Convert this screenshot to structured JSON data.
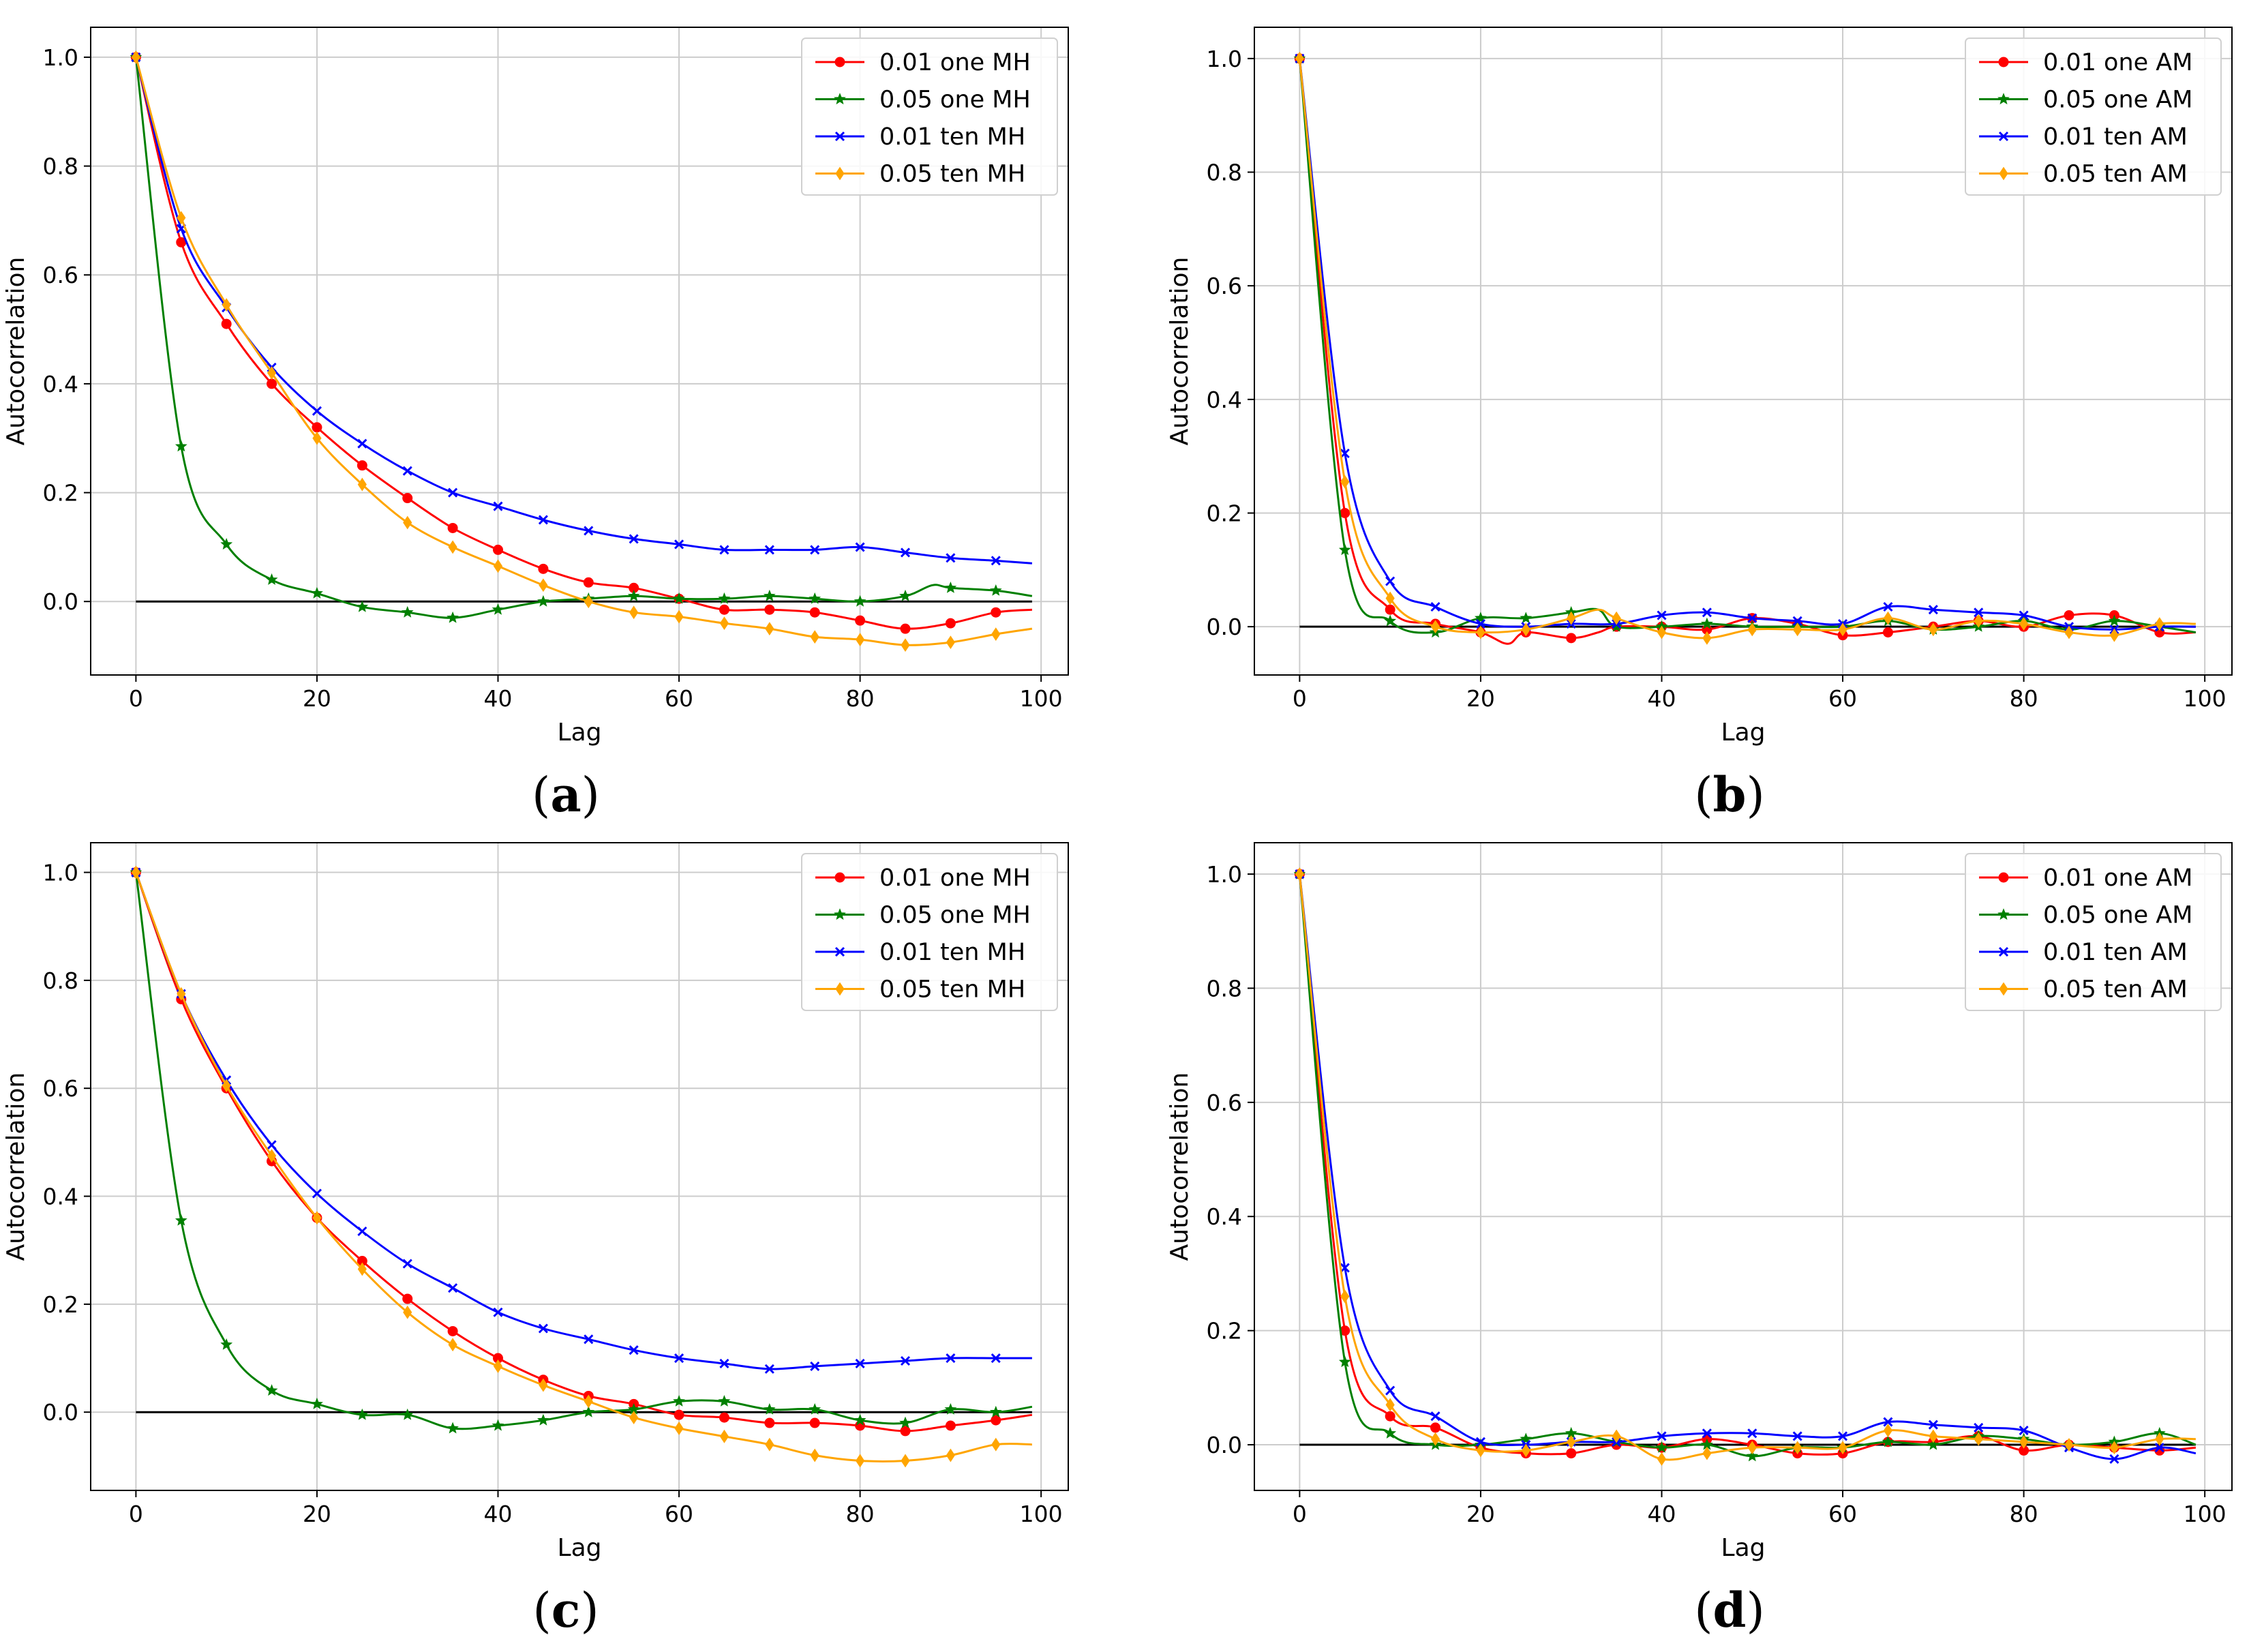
{
  "colors": {
    "red": "#ff0000",
    "green": "#008000",
    "blue": "#0000ff",
    "orange": "#ffa500",
    "zero_line": "#000000",
    "grid": "#cccccc"
  },
  "chart_data": [
    {
      "type": "line",
      "panel": "(a)",
      "xlabel": "Lag",
      "ylabel": "Autocorrelation",
      "xlim": [
        -5,
        103
      ],
      "ylim": [
        -0.135,
        1.055
      ],
      "xticks": [
        0,
        20,
        40,
        60,
        80,
        100
      ],
      "xtick_labels": [
        "0",
        "20",
        "40",
        "60",
        "80",
        "100"
      ],
      "yticks": [
        0.0,
        0.2,
        0.4,
        0.6,
        0.8,
        1.0
      ],
      "ytick_labels": [
        "0.0",
        "0.2",
        "0.4",
        "0.6",
        "0.8",
        "1.0"
      ],
      "grid": true,
      "legend_position": "top-right",
      "zero_line": true,
      "series": [
        {
          "name": "0.01 one MH",
          "color": "red",
          "marker": "circle",
          "x": [
            0,
            5,
            10,
            15,
            20,
            25,
            30,
            35,
            40,
            45,
            50,
            55,
            60,
            65,
            70,
            75,
            80,
            85,
            90,
            95,
            99
          ],
          "y": [
            1.0,
            0.66,
            0.51,
            0.4,
            0.32,
            0.25,
            0.19,
            0.135,
            0.095,
            0.06,
            0.035,
            0.025,
            0.005,
            -0.015,
            -0.015,
            -0.02,
            -0.035,
            -0.05,
            -0.04,
            -0.02,
            -0.015
          ]
        },
        {
          "name": "0.05 one MH",
          "color": "green",
          "marker": "star",
          "x": [
            0,
            5,
            10,
            15,
            20,
            25,
            30,
            35,
            40,
            45,
            50,
            55,
            60,
            65,
            70,
            75,
            80,
            85,
            88,
            90,
            95,
            99
          ],
          "y": [
            1.0,
            0.285,
            0.105,
            0.04,
            0.015,
            -0.01,
            -0.02,
            -0.03,
            -0.015,
            0.0,
            0.005,
            0.01,
            0.005,
            0.005,
            0.01,
            0.005,
            0.0,
            0.01,
            0.03,
            0.025,
            0.02,
            0.01
          ]
        },
        {
          "name": "0.01 ten MH",
          "color": "blue",
          "marker": "x",
          "x": [
            0,
            5,
            10,
            15,
            20,
            25,
            30,
            35,
            40,
            45,
            50,
            55,
            60,
            65,
            70,
            75,
            80,
            85,
            90,
            95,
            99
          ],
          "y": [
            1.0,
            0.685,
            0.54,
            0.43,
            0.35,
            0.29,
            0.24,
            0.2,
            0.175,
            0.15,
            0.13,
            0.115,
            0.105,
            0.095,
            0.095,
            0.095,
            0.1,
            0.09,
            0.08,
            0.075,
            0.07
          ]
        },
        {
          "name": "0.05 ten MH",
          "color": "orange",
          "marker": "diamond",
          "x": [
            0,
            5,
            10,
            15,
            20,
            25,
            30,
            35,
            40,
            45,
            50,
            55,
            60,
            65,
            70,
            75,
            80,
            85,
            90,
            95,
            99
          ],
          "y": [
            1.0,
            0.705,
            0.545,
            0.42,
            0.3,
            0.215,
            0.145,
            0.1,
            0.065,
            0.03,
            0.0,
            -0.02,
            -0.028,
            -0.04,
            -0.05,
            -0.065,
            -0.07,
            -0.08,
            -0.075,
            -0.06,
            -0.05
          ]
        }
      ]
    },
    {
      "type": "line",
      "panel": "(b)",
      "xlabel": "Lag",
      "ylabel": "Autocorrelation",
      "xlim": [
        -5,
        103
      ],
      "ylim": [
        -0.085,
        1.055
      ],
      "xticks": [
        0,
        20,
        40,
        60,
        80,
        100
      ],
      "xtick_labels": [
        "0",
        "20",
        "40",
        "60",
        "80",
        "100"
      ],
      "yticks": [
        0.0,
        0.2,
        0.4,
        0.6,
        0.8,
        1.0
      ],
      "ytick_labels": [
        "0.0",
        "0.2",
        "0.4",
        "0.6",
        "0.8",
        "1.0"
      ],
      "grid": true,
      "legend_position": "top-right",
      "zero_line": true,
      "series": [
        {
          "name": "0.01 one AM",
          "color": "red",
          "marker": "circle",
          "x": [
            0,
            5,
            10,
            15,
            20,
            23,
            25,
            30,
            33,
            35,
            40,
            45,
            50,
            55,
            60,
            65,
            70,
            75,
            80,
            85,
            90,
            95,
            99
          ],
          "y": [
            1.0,
            0.2,
            0.03,
            0.005,
            -0.01,
            -0.03,
            -0.01,
            -0.02,
            -0.01,
            0.0,
            0.0,
            -0.005,
            0.015,
            0.005,
            -0.015,
            -0.01,
            0.0,
            0.01,
            0.0,
            0.02,
            0.02,
            -0.01,
            -0.01
          ]
        },
        {
          "name": "0.05 one AM",
          "color": "green",
          "marker": "star",
          "x": [
            0,
            5,
            10,
            15,
            20,
            25,
            30,
            33,
            35,
            40,
            45,
            50,
            55,
            60,
            65,
            70,
            75,
            80,
            85,
            90,
            95,
            99
          ],
          "y": [
            1.0,
            0.135,
            0.01,
            -0.01,
            0.015,
            0.015,
            0.025,
            0.03,
            0.0,
            0.0,
            0.005,
            0.0,
            0.0,
            0.0,
            0.01,
            -0.005,
            0.0,
            0.01,
            -0.005,
            0.01,
            0.0,
            -0.01
          ]
        },
        {
          "name": "0.01 ten AM",
          "color": "blue",
          "marker": "x",
          "x": [
            0,
            5,
            10,
            15,
            20,
            25,
            30,
            35,
            40,
            45,
            50,
            55,
            60,
            65,
            70,
            75,
            80,
            85,
            90,
            95,
            99
          ],
          "y": [
            1.0,
            0.305,
            0.08,
            0.035,
            0.005,
            0.0,
            0.005,
            0.005,
            0.02,
            0.025,
            0.015,
            0.01,
            0.005,
            0.035,
            0.03,
            0.025,
            0.02,
            0.0,
            -0.005,
            0.0,
            0.0
          ]
        },
        {
          "name": "0.05 ten AM",
          "color": "orange",
          "marker": "diamond",
          "x": [
            0,
            5,
            10,
            15,
            20,
            25,
            30,
            33,
            35,
            40,
            45,
            50,
            55,
            60,
            65,
            70,
            75,
            80,
            85,
            90,
            95,
            99
          ],
          "y": [
            1.0,
            0.255,
            0.05,
            0.0,
            -0.01,
            -0.005,
            0.015,
            0.03,
            0.015,
            -0.01,
            -0.02,
            -0.005,
            -0.005,
            -0.005,
            0.015,
            -0.005,
            0.01,
            0.005,
            -0.01,
            -0.015,
            0.005,
            0.005
          ]
        }
      ]
    },
    {
      "type": "line",
      "panel": "(c)",
      "xlabel": "Lag",
      "ylabel": "Autocorrelation",
      "xlim": [
        -5,
        103
      ],
      "ylim": [
        -0.145,
        1.055
      ],
      "xticks": [
        0,
        20,
        40,
        60,
        80,
        100
      ],
      "xtick_labels": [
        "0",
        "20",
        "40",
        "60",
        "80",
        "100"
      ],
      "yticks": [
        0.0,
        0.2,
        0.4,
        0.6,
        0.8,
        1.0
      ],
      "ytick_labels": [
        "0.0",
        "0.2",
        "0.4",
        "0.6",
        "0.8",
        "1.0"
      ],
      "grid": true,
      "legend_position": "top-right",
      "zero_line": true,
      "series": [
        {
          "name": "0.01 one MH",
          "color": "red",
          "marker": "circle",
          "x": [
            0,
            5,
            10,
            15,
            20,
            25,
            30,
            35,
            40,
            45,
            50,
            55,
            60,
            65,
            70,
            75,
            80,
            85,
            90,
            95,
            99
          ],
          "y": [
            1.0,
            0.765,
            0.6,
            0.465,
            0.36,
            0.28,
            0.21,
            0.15,
            0.1,
            0.06,
            0.03,
            0.015,
            -0.005,
            -0.01,
            -0.02,
            -0.02,
            -0.025,
            -0.035,
            -0.025,
            -0.015,
            -0.005
          ]
        },
        {
          "name": "0.05 one MH",
          "color": "green",
          "marker": "star",
          "x": [
            0,
            5,
            10,
            15,
            20,
            25,
            30,
            35,
            40,
            45,
            50,
            55,
            60,
            65,
            70,
            75,
            80,
            85,
            90,
            95,
            99
          ],
          "y": [
            1.0,
            0.355,
            0.125,
            0.04,
            0.015,
            -0.005,
            -0.005,
            -0.03,
            -0.025,
            -0.015,
            0.0,
            0.005,
            0.02,
            0.02,
            0.005,
            0.005,
            -0.015,
            -0.02,
            0.005,
            0.0,
            0.01
          ]
        },
        {
          "name": "0.01 ten MH",
          "color": "blue",
          "marker": "x",
          "x": [
            0,
            5,
            10,
            15,
            20,
            25,
            30,
            35,
            40,
            45,
            50,
            55,
            60,
            65,
            70,
            75,
            80,
            85,
            90,
            95,
            99
          ],
          "y": [
            1.0,
            0.775,
            0.615,
            0.495,
            0.405,
            0.335,
            0.275,
            0.23,
            0.185,
            0.155,
            0.135,
            0.115,
            0.1,
            0.09,
            0.08,
            0.085,
            0.09,
            0.095,
            0.1,
            0.1,
            0.1
          ]
        },
        {
          "name": "0.05 ten MH",
          "color": "orange",
          "marker": "diamond",
          "x": [
            0,
            5,
            10,
            15,
            20,
            25,
            30,
            35,
            40,
            45,
            50,
            55,
            60,
            65,
            70,
            75,
            80,
            85,
            90,
            95,
            99
          ],
          "y": [
            1.0,
            0.775,
            0.605,
            0.475,
            0.36,
            0.265,
            0.185,
            0.125,
            0.085,
            0.05,
            0.02,
            -0.01,
            -0.03,
            -0.045,
            -0.06,
            -0.08,
            -0.09,
            -0.09,
            -0.08,
            -0.06,
            -0.06
          ]
        }
      ]
    },
    {
      "type": "line",
      "panel": "(d)",
      "xlabel": "Lag",
      "ylabel": "Autocorrelation",
      "xlim": [
        -5,
        103
      ],
      "ylim": [
        -0.08,
        1.055
      ],
      "xticks": [
        0,
        20,
        40,
        60,
        80,
        100
      ],
      "xtick_labels": [
        "0",
        "20",
        "40",
        "60",
        "80",
        "100"
      ],
      "yticks": [
        0.0,
        0.2,
        0.4,
        0.6,
        0.8,
        1.0
      ],
      "ytick_labels": [
        "0.0",
        "0.2",
        "0.4",
        "0.6",
        "0.8",
        "1.0"
      ],
      "grid": true,
      "legend_position": "top-right",
      "zero_line": true,
      "series": [
        {
          "name": "0.01 one AM",
          "color": "red",
          "marker": "circle",
          "x": [
            0,
            5,
            10,
            15,
            20,
            25,
            30,
            35,
            40,
            45,
            50,
            55,
            60,
            65,
            70,
            75,
            80,
            85,
            90,
            95,
            99
          ],
          "y": [
            1.0,
            0.2,
            0.05,
            0.03,
            -0.005,
            -0.015,
            -0.015,
            0.0,
            -0.005,
            0.01,
            0.0,
            -0.015,
            -0.015,
            0.005,
            0.005,
            0.015,
            -0.01,
            0.0,
            -0.005,
            -0.01,
            -0.005
          ]
        },
        {
          "name": "0.05 one AM",
          "color": "green",
          "marker": "star",
          "x": [
            0,
            5,
            10,
            15,
            20,
            25,
            30,
            35,
            40,
            45,
            50,
            55,
            60,
            65,
            70,
            75,
            80,
            85,
            90,
            95,
            99
          ],
          "y": [
            1.0,
            0.145,
            0.02,
            0.0,
            0.0,
            0.01,
            0.02,
            0.005,
            -0.005,
            0.0,
            -0.02,
            -0.005,
            -0.005,
            0.005,
            0.0,
            0.015,
            0.01,
            0.0,
            0.005,
            0.02,
            0.0
          ]
        },
        {
          "name": "0.01 ten AM",
          "color": "blue",
          "marker": "x",
          "x": [
            0,
            5,
            10,
            15,
            20,
            25,
            30,
            35,
            40,
            45,
            50,
            55,
            60,
            65,
            70,
            75,
            80,
            85,
            90,
            95,
            99
          ],
          "y": [
            1.0,
            0.31,
            0.095,
            0.05,
            0.005,
            0.0,
            0.005,
            0.005,
            0.015,
            0.02,
            0.02,
            0.015,
            0.015,
            0.04,
            0.035,
            0.03,
            0.025,
            -0.005,
            -0.025,
            -0.005,
            -0.015
          ]
        },
        {
          "name": "0.05 ten AM",
          "color": "orange",
          "marker": "diamond",
          "x": [
            0,
            5,
            10,
            15,
            20,
            25,
            30,
            35,
            40,
            45,
            50,
            55,
            60,
            65,
            70,
            75,
            80,
            85,
            90,
            95,
            99
          ],
          "y": [
            1.0,
            0.26,
            0.07,
            0.01,
            -0.01,
            -0.01,
            0.005,
            0.015,
            -0.025,
            -0.015,
            -0.005,
            -0.005,
            -0.005,
            0.025,
            0.015,
            0.01,
            0.005,
            0.0,
            -0.005,
            0.01,
            0.01
          ]
        }
      ]
    }
  ]
}
